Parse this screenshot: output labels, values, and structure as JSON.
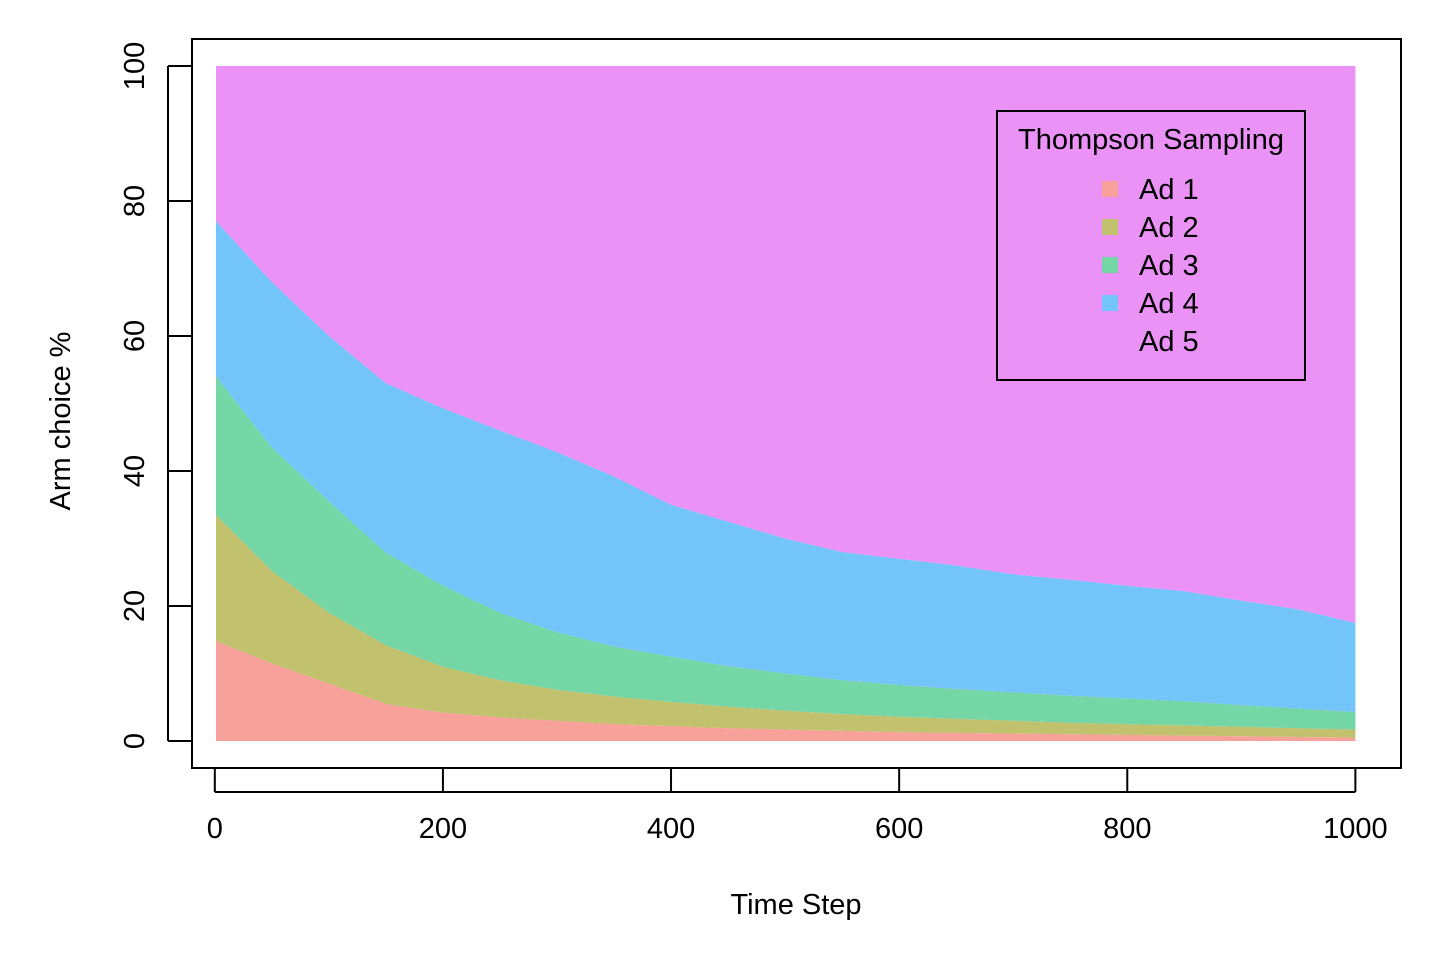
{
  "chart_data": {
    "type": "area",
    "stacked": true,
    "title": "",
    "xlabel": "Time Step",
    "ylabel": "Arm choice %",
    "xlim": [
      -20,
      1040
    ],
    "ylim": [
      -4,
      104
    ],
    "x_ticks": [
      0,
      200,
      400,
      600,
      800,
      1000
    ],
    "x_tick_labels": [
      "0",
      "200",
      "400",
      "600",
      "800",
      "1000"
    ],
    "y_ticks": [
      0,
      20,
      40,
      60,
      80,
      100
    ],
    "y_tick_labels": [
      "0",
      "20",
      "40",
      "60",
      "80",
      "100"
    ],
    "grid": false,
    "legend": {
      "title": "Thompson Sampling",
      "placement": "top-right"
    },
    "x": [
      1,
      50,
      100,
      150,
      200,
      250,
      300,
      350,
      400,
      450,
      500,
      550,
      600,
      650,
      700,
      750,
      800,
      850,
      900,
      950,
      1000
    ],
    "series": [
      {
        "name": "Ad 1",
        "color": "#F8A09A",
        "values": [
          14.8,
          11.5,
          8.5,
          5.5,
          4.2,
          3.5,
          3.0,
          2.5,
          2.2,
          1.9,
          1.7,
          1.5,
          1.3,
          1.2,
          1.1,
          1.0,
          0.9,
          0.8,
          0.7,
          0.6,
          0.5
        ]
      },
      {
        "name": "Ad 2",
        "color": "#C2C16E",
        "values": [
          18.7,
          13.7,
          10.5,
          8.7,
          6.8,
          5.5,
          4.6,
          4.1,
          3.6,
          3.2,
          2.8,
          2.5,
          2.3,
          2.1,
          1.9,
          1.7,
          1.6,
          1.5,
          1.4,
          1.3,
          1.2
        ]
      },
      {
        "name": "Ad 3",
        "color": "#74D5A5",
        "values": [
          20.5,
          18.3,
          16.5,
          13.7,
          12.0,
          10.0,
          8.5,
          7.4,
          6.7,
          6.0,
          5.5,
          5.0,
          4.7,
          4.4,
          4.2,
          4.0,
          3.8,
          3.6,
          3.2,
          2.9,
          2.6
        ]
      },
      {
        "name": "Ad 4",
        "color": "#73C4F8",
        "values": [
          23.0,
          24.5,
          24.5,
          25.1,
          26.3,
          27.0,
          26.7,
          25.2,
          22.5,
          21.4,
          20.0,
          19.0,
          18.7,
          18.3,
          17.5,
          17.2,
          16.7,
          16.3,
          15.5,
          14.7,
          13.2
        ]
      },
      {
        "name": "Ad 5",
        "color": "#EB92F6",
        "values": [
          23.0,
          32.0,
          40.0,
          47.0,
          50.7,
          54.0,
          57.2,
          60.8,
          65.0,
          67.5,
          70.0,
          72.0,
          73.0,
          74.0,
          75.3,
          76.1,
          77.0,
          77.8,
          79.2,
          80.5,
          82.5
        ]
      }
    ]
  }
}
